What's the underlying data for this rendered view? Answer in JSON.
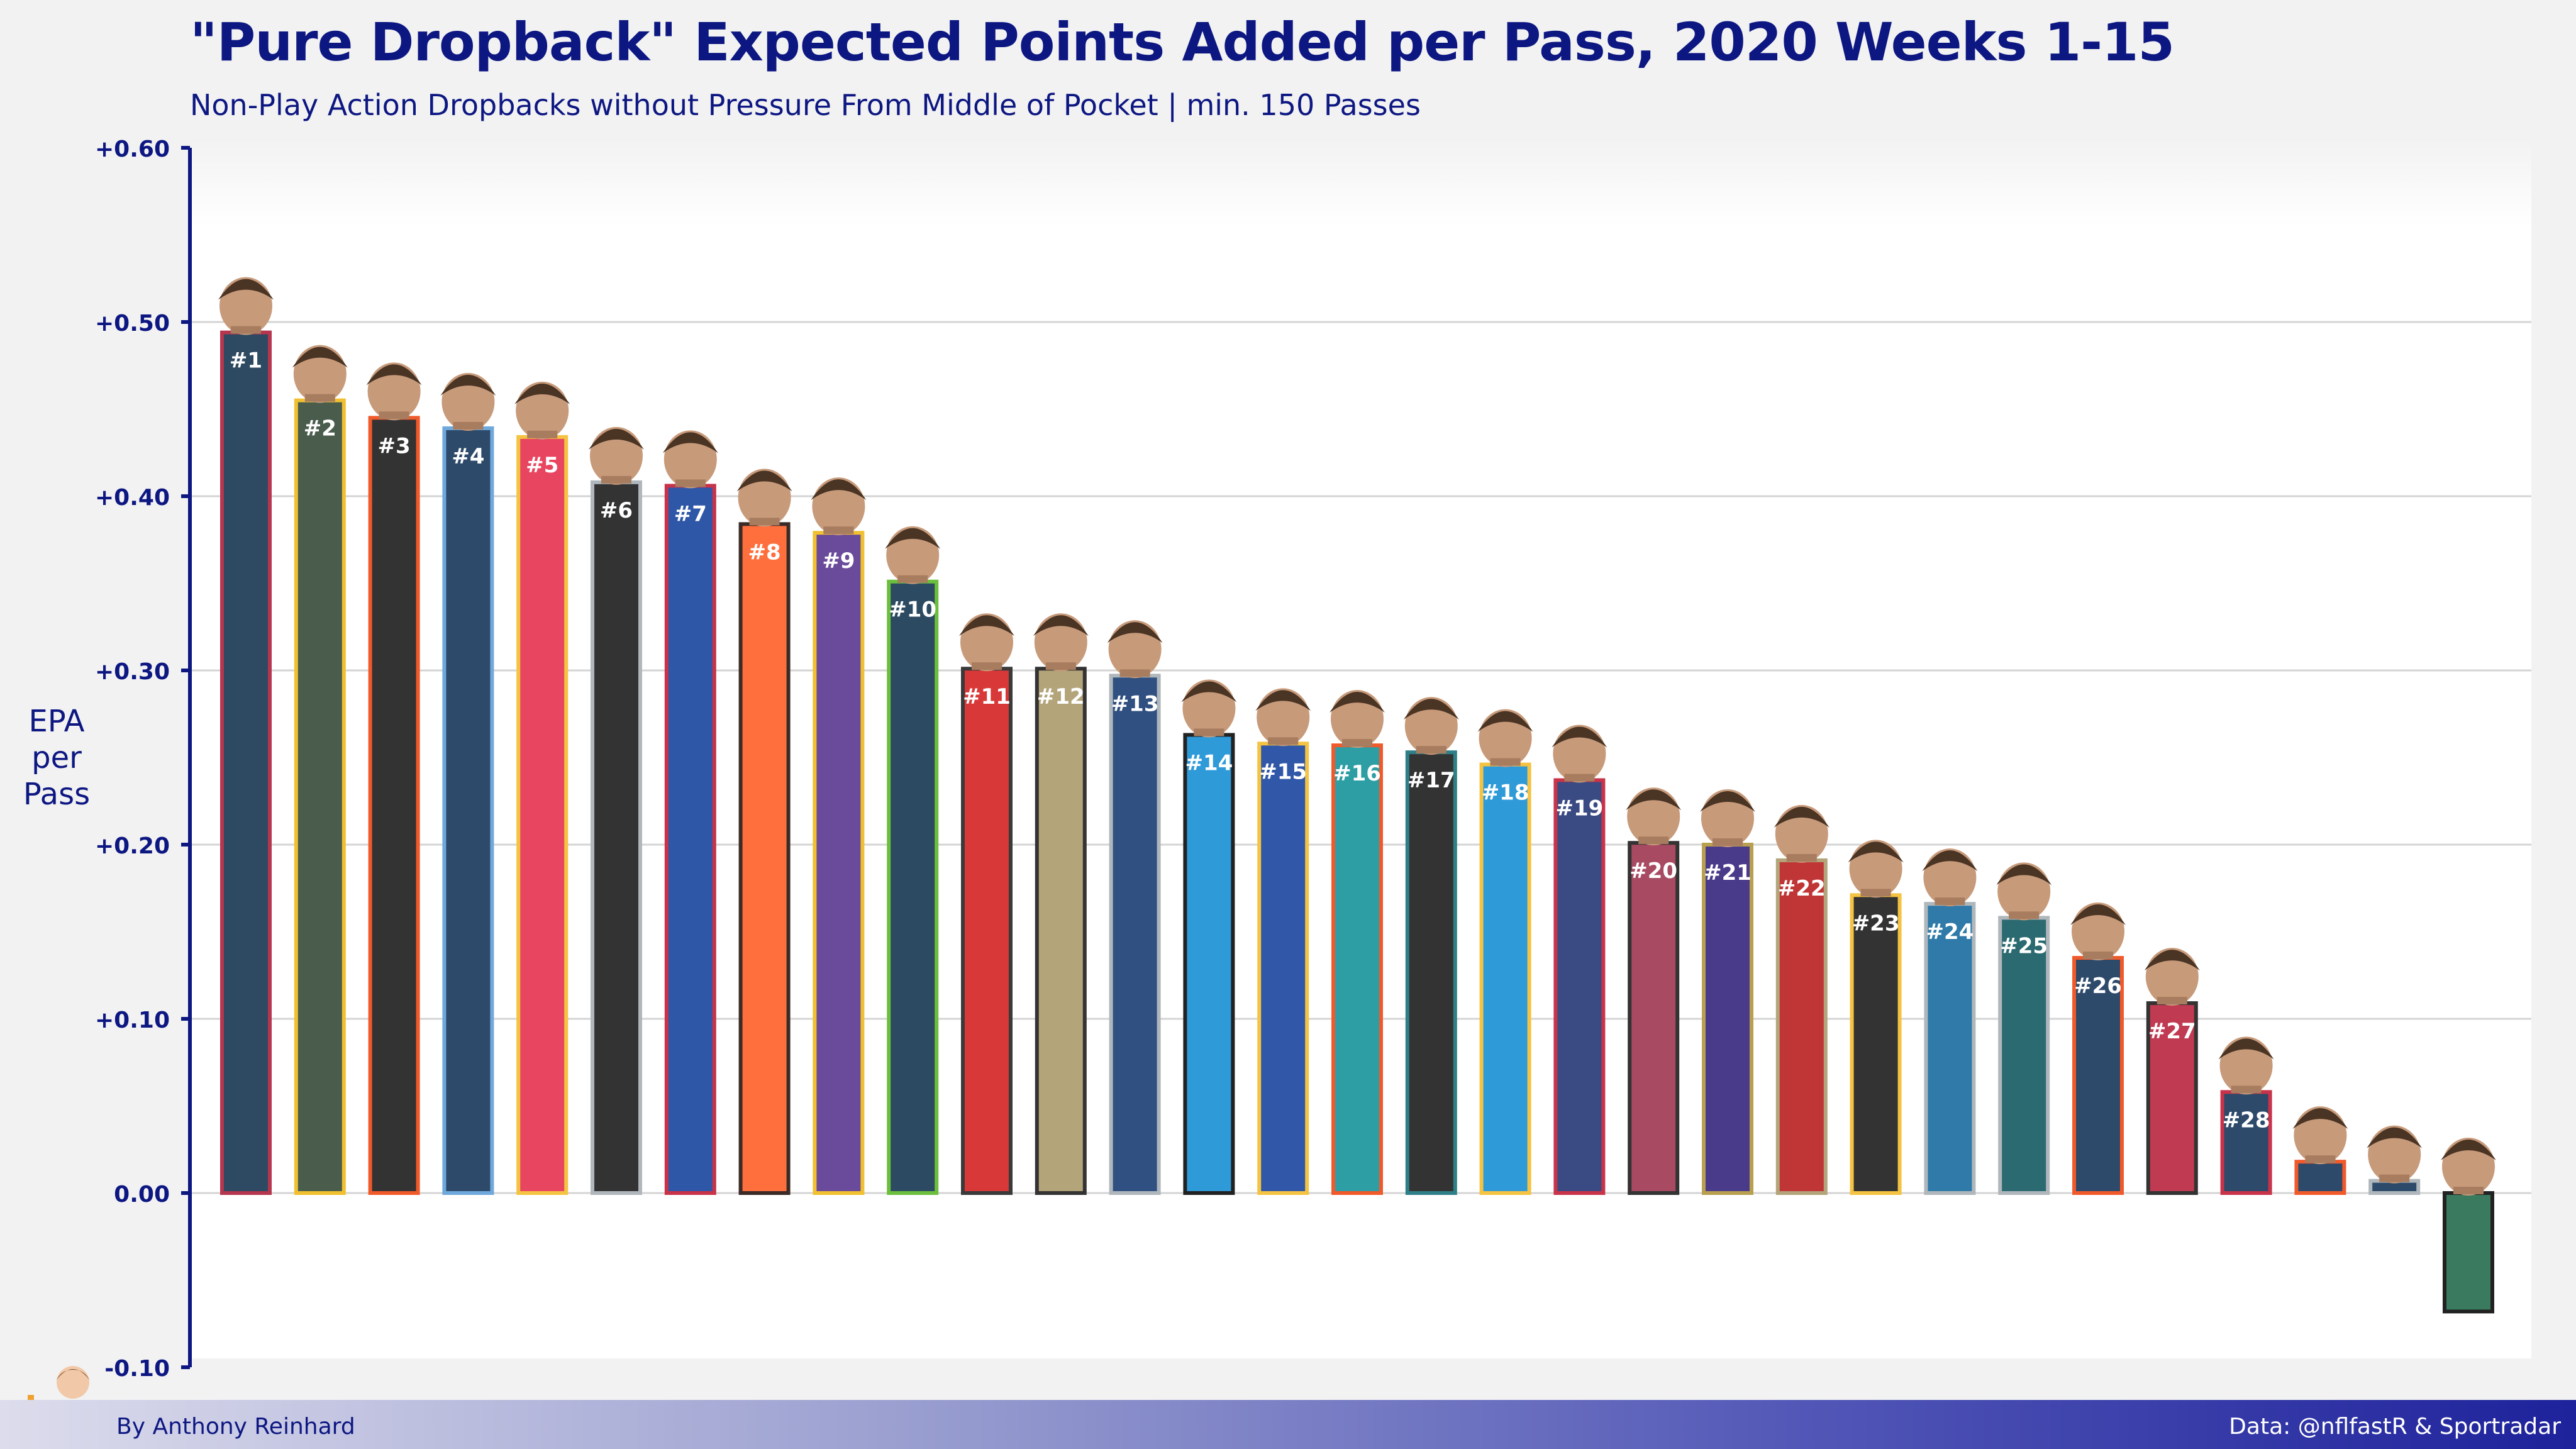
{
  "header": {
    "title": "\"Pure Dropback\" Expected Points Added per Pass, 2020 Weeks 1-15",
    "subtitle": "Non-Play Action Dropbacks without Pressure From Middle of Pocket  |  min. 150 Passes"
  },
  "footer": {
    "credit": "By Anthony Reinhard",
    "source": "Data: @nflfastR & Sportradar"
  },
  "chart_data": {
    "type": "bar",
    "ylabel": "EPA per Pass",
    "ylim": [
      -0.1,
      0.6
    ],
    "yticks": [
      -0.1,
      0.0,
      0.1,
      0.2,
      0.3,
      0.4,
      0.5,
      0.6
    ],
    "ytick_labels": [
      "-0.10",
      "0.00",
      "+0.10",
      "+0.20",
      "+0.30",
      "+0.40",
      "+0.50",
      "+0.60"
    ],
    "grid": true,
    "bars": [
      {
        "rank_label": "#1",
        "value": 0.494,
        "fill": "#2d4a62",
        "border": "#b5364e"
      },
      {
        "rank_label": "#2",
        "value": 0.455,
        "fill": "#4a5d4d",
        "border": "#f0c031"
      },
      {
        "rank_label": "#3",
        "value": 0.445,
        "fill": "#333333",
        "border": "#f05a2b"
      },
      {
        "rank_label": "#4",
        "value": 0.439,
        "fill": "#2e4a6a",
        "border": "#6fa8dc"
      },
      {
        "rank_label": "#5",
        "value": 0.434,
        "fill": "#e84560",
        "border": "#f5c342"
      },
      {
        "rank_label": "#6",
        "value": 0.408,
        "fill": "#333333",
        "border": "#b0b7bc"
      },
      {
        "rank_label": "#7",
        "value": 0.406,
        "fill": "#2f57a8",
        "border": "#c8334a"
      },
      {
        "rank_label": "#8",
        "value": 0.384,
        "fill": "#ff6f3d",
        "border": "#3b2b26"
      },
      {
        "rank_label": "#9",
        "value": 0.379,
        "fill": "#6a4a9a",
        "border": "#f0c031"
      },
      {
        "rank_label": "#10",
        "value": 0.351,
        "fill": "#2c4a62",
        "border": "#6cbf3c"
      },
      {
        "rank_label": "#11",
        "value": 0.301,
        "fill": "#d93838",
        "border": "#3a3a3a"
      },
      {
        "rank_label": "#12",
        "value": 0.301,
        "fill": "#b3a47a",
        "border": "#333333"
      },
      {
        "rank_label": "#13",
        "value": 0.297,
        "fill": "#2f5080",
        "border": "#b0b7bc"
      },
      {
        "rank_label": "#14",
        "value": 0.263,
        "fill": "#2f9ad8",
        "border": "#222222"
      },
      {
        "rank_label": "#15",
        "value": 0.258,
        "fill": "#3158a8",
        "border": "#f5c342"
      },
      {
        "rank_label": "#16",
        "value": 0.257,
        "fill": "#2e9ea5",
        "border": "#f05a2b"
      },
      {
        "rank_label": "#17",
        "value": 0.253,
        "fill": "#333333",
        "border": "#2f7f88"
      },
      {
        "rank_label": "#18",
        "value": 0.246,
        "fill": "#2f9ad8",
        "border": "#f5c342"
      },
      {
        "rank_label": "#19",
        "value": 0.237,
        "fill": "#3a4a82",
        "border": "#c8334a"
      },
      {
        "rank_label": "#20",
        "value": 0.201,
        "fill": "#a84a62",
        "border": "#333333"
      },
      {
        "rank_label": "#21",
        "value": 0.2,
        "fill": "#4a3a8a",
        "border": "#b8a050"
      },
      {
        "rank_label": "#22",
        "value": 0.191,
        "fill": "#c03535",
        "border": "#b3a47a"
      },
      {
        "rank_label": "#23",
        "value": 0.171,
        "fill": "#333333",
        "border": "#f5c342"
      },
      {
        "rank_label": "#24",
        "value": 0.166,
        "fill": "#2f7aa8",
        "border": "#b0b7bc"
      },
      {
        "rank_label": "#25",
        "value": 0.158,
        "fill": "#2a6a70",
        "border": "#b0b7bc"
      },
      {
        "rank_label": "#26",
        "value": 0.135,
        "fill": "#2d4a6a",
        "border": "#f05a2b"
      },
      {
        "rank_label": "#27",
        "value": 0.109,
        "fill": "#c03a52",
        "border": "#333333"
      },
      {
        "rank_label": "#28",
        "value": 0.058,
        "fill": "#2d4a6a",
        "border": "#c8334a"
      },
      {
        "rank_label": "",
        "value": 0.018,
        "fill": "#2d4a6a",
        "border": "#f05a2b"
      },
      {
        "rank_label": "",
        "value": 0.007,
        "fill": "#2d4a6a",
        "border": "#b0b7bc"
      },
      {
        "rank_label": "",
        "value": -0.068,
        "fill": "#3a7a5e",
        "border": "#222222"
      }
    ]
  }
}
